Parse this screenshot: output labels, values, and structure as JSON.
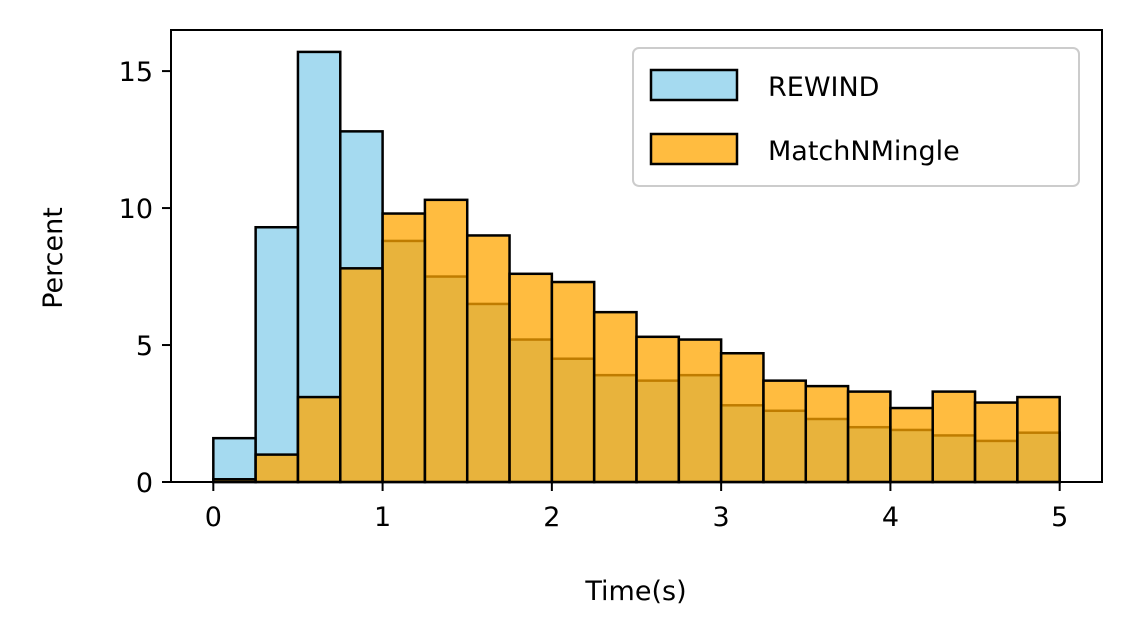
{
  "chart_data": {
    "type": "bar",
    "subtype": "overlaid-histogram",
    "xlabel": "Time(s)",
    "ylabel": "Percent",
    "xlim": [
      -0.25,
      5.25
    ],
    "ylim": [
      0,
      16.5
    ],
    "xticks": [
      0,
      1,
      2,
      3,
      4,
      5
    ],
    "yticks": [
      0,
      5,
      10,
      15
    ],
    "bin_width": 0.25,
    "bin_starts": [
      0,
      0.25,
      0.5,
      0.75,
      1.0,
      1.25,
      1.5,
      1.75,
      2.0,
      2.25,
      2.5,
      2.75,
      3.0,
      3.25,
      3.5,
      3.75,
      4.0,
      4.25,
      4.5,
      4.75
    ],
    "series": [
      {
        "name": "REWIND",
        "color": "#87CEEB",
        "values": [
          1.6,
          9.3,
          15.7,
          12.8,
          8.8,
          7.5,
          6.5,
          5.2,
          4.5,
          3.9,
          3.7,
          3.9,
          2.8,
          2.6,
          2.3,
          2.0,
          1.9,
          1.7,
          1.5,
          1.8
        ]
      },
      {
        "name": "MatchNMingle",
        "color": "#FFA500",
        "values": [
          0.1,
          1.0,
          3.1,
          7.8,
          9.8,
          10.3,
          9.0,
          7.6,
          7.3,
          6.2,
          5.3,
          5.2,
          4.7,
          3.7,
          3.5,
          3.3,
          2.7,
          3.3,
          2.9,
          3.1
        ]
      }
    ],
    "legend_position": "top-right",
    "grid": false
  }
}
